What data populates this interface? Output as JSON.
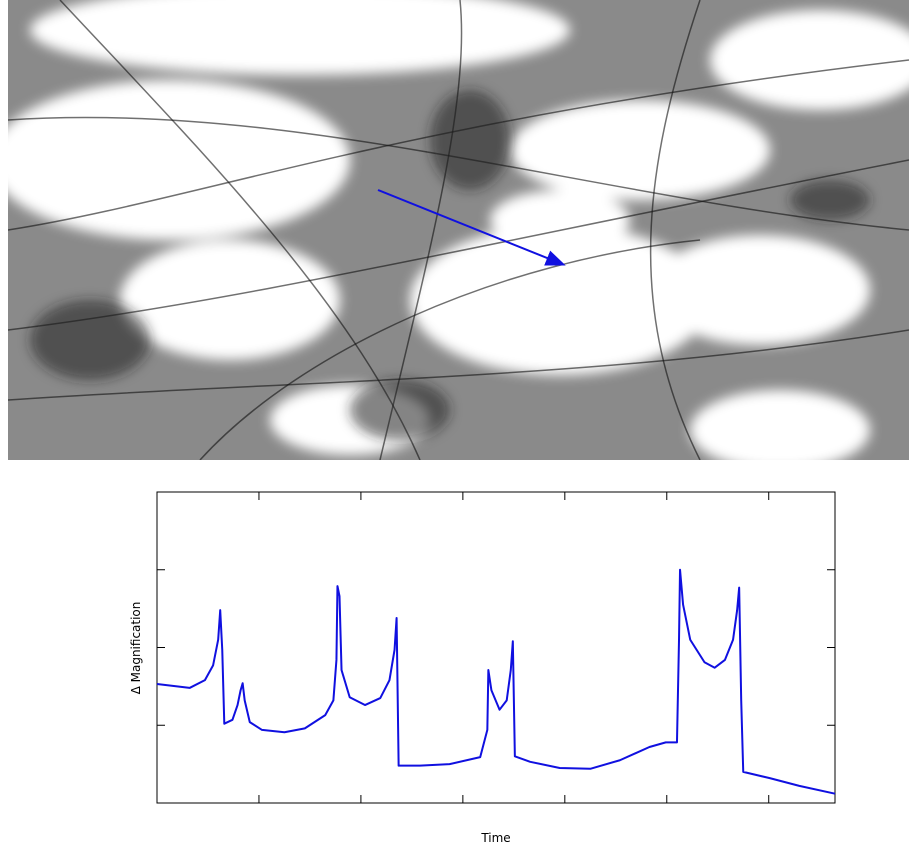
{
  "chart_data": {
    "type": "line",
    "xlabel": "Time",
    "ylabel": "Δ Magnification",
    "xlim": [
      0,
      6.65
    ],
    "xticks": [
      0,
      1,
      2,
      3,
      4,
      5,
      6
    ],
    "ylim": [
      0,
      4
    ],
    "yticks": [
      0,
      1,
      2,
      3,
      4
    ],
    "color": "#1010e0",
    "x": [
      0,
      0.32,
      0.47,
      0.55,
      0.6,
      0.62,
      0.64,
      0.66,
      0.74,
      0.79,
      0.82,
      0.84,
      0.86,
      0.91,
      1.03,
      1.25,
      1.45,
      1.65,
      1.73,
      1.76,
      1.77,
      1.79,
      1.81,
      1.89,
      2.04,
      2.19,
      2.28,
      2.33,
      2.35,
      2.37,
      2.58,
      2.87,
      3.17,
      3.24,
      3.25,
      3.28,
      3.36,
      3.43,
      3.47,
      3.49,
      3.51,
      3.66,
      3.95,
      4.25,
      4.54,
      4.83,
      4.99,
      5.1,
      5.12,
      5.13,
      5.16,
      5.23,
      5.37,
      5.47,
      5.57,
      5.65,
      5.69,
      5.71,
      5.73,
      5.75,
      6.01,
      6.3,
      6.65
    ],
    "values": [
      1.53,
      1.48,
      1.58,
      1.77,
      2.1,
      2.48,
      1.97,
      1.02,
      1.07,
      1.26,
      1.45,
      1.54,
      1.32,
      1.04,
      0.94,
      0.91,
      0.96,
      1.13,
      1.32,
      1.84,
      2.79,
      2.66,
      1.71,
      1.36,
      1.26,
      1.35,
      1.58,
      1.97,
      2.38,
      0.48,
      0.48,
      0.5,
      0.59,
      0.94,
      1.71,
      1.45,
      1.2,
      1.32,
      1.71,
      2.08,
      0.6,
      0.53,
      0.45,
      0.44,
      0.55,
      0.72,
      0.78,
      0.78,
      2.1,
      3.0,
      2.55,
      2.1,
      1.81,
      1.74,
      1.84,
      2.1,
      2.48,
      2.77,
      1.32,
      0.4,
      0.32,
      0.22,
      0.12
    ]
  }
}
